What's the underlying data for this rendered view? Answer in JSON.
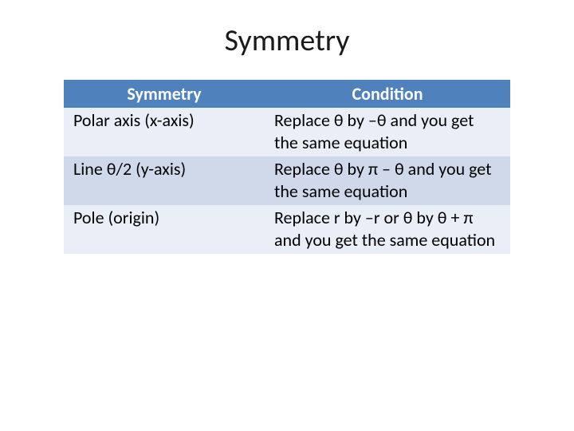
{
  "title": "Symmetry",
  "table": {
    "type": "table",
    "header_bg": "#4f81bd",
    "header_color": "#ffffff",
    "row_odd_bg": "#e9eef7",
    "row_even_bg": "#d0d9ea",
    "body_fontsize": 22,
    "header_fontsize": 22,
    "columns": [
      {
        "label": "Symmetry",
        "width_pct": 45
      },
      {
        "label": "Condition",
        "width_pct": 55
      }
    ],
    "rows": [
      {
        "symmetry": "Polar axis (x-axis)",
        "condition": "Replace θ by –θ and you get the same equation"
      },
      {
        "symmetry": "Line θ/2 (y-axis)",
        "condition": "Replace θ by π – θ and you get the same equation"
      },
      {
        "symmetry": "Pole (origin)",
        "condition": "Replace r by –r or θ by θ + π and you get the same equation"
      }
    ]
  },
  "background_color": "#ffffff",
  "text_color": "#000000"
}
